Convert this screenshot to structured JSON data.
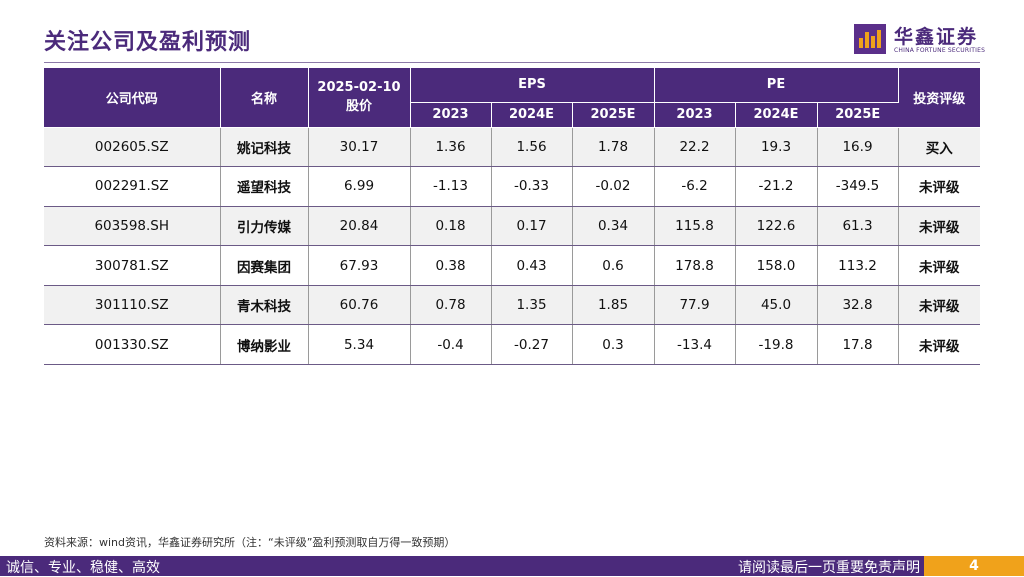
{
  "page_title": "关注公司及盈利预测",
  "logo": {
    "cn": "华鑫证券",
    "en": "CHINA FORTUNE SECURITIES",
    "brand_color": "#4b2a7b",
    "accent_color": "#f0a21b"
  },
  "table": {
    "headers": {
      "code": "公司代码",
      "name": "名称",
      "price_date": "2025-02-10",
      "price": "股价",
      "eps": "EPS",
      "pe": "PE",
      "rating": "投资评级",
      "years": [
        "2023",
        "2024E",
        "2025E"
      ]
    },
    "rows": [
      {
        "code": "002605.SZ",
        "name": "姚记科技",
        "price": "30.17",
        "eps": [
          "1.36",
          "1.56",
          "1.78"
        ],
        "pe": [
          "22.2",
          "19.3",
          "16.9"
        ],
        "rating": "买入"
      },
      {
        "code": "002291.SZ",
        "name": "遥望科技",
        "price": "6.99",
        "eps": [
          "-1.13",
          "-0.33",
          "-0.02"
        ],
        "pe": [
          "-6.2",
          "-21.2",
          "-349.5"
        ],
        "rating": "未评级"
      },
      {
        "code": "603598.SH",
        "name": "引力传媒",
        "price": "20.84",
        "eps": [
          "0.18",
          "0.17",
          "0.34"
        ],
        "pe": [
          "115.8",
          "122.6",
          "61.3"
        ],
        "rating": "未评级"
      },
      {
        "code": "300781.SZ",
        "name": "因赛集团",
        "price": "67.93",
        "eps": [
          "0.38",
          "0.43",
          "0.6"
        ],
        "pe": [
          "178.8",
          "158.0",
          "113.2"
        ],
        "rating": "未评级"
      },
      {
        "code": "301110.SZ",
        "name": "青木科技",
        "price": "60.76",
        "eps": [
          "0.78",
          "1.35",
          "1.85"
        ],
        "pe": [
          "77.9",
          "45.0",
          "32.8"
        ],
        "rating": "未评级"
      },
      {
        "code": "001330.SZ",
        "name": "博纳影业",
        "price": "5.34",
        "eps": [
          "-0.4",
          "-0.27",
          "0.3"
        ],
        "pe": [
          "-13.4",
          "-19.8",
          "17.8"
        ],
        "rating": "未评级"
      }
    ]
  },
  "source_note": "资料来源：wind资讯，华鑫证券研究所（注：“未评级”盈利预测取自万得一致预期）",
  "footer": {
    "left": "诚信、专业、稳健、高效",
    "right": "请阅读最后一页重要免责声明",
    "page_number": "4"
  }
}
